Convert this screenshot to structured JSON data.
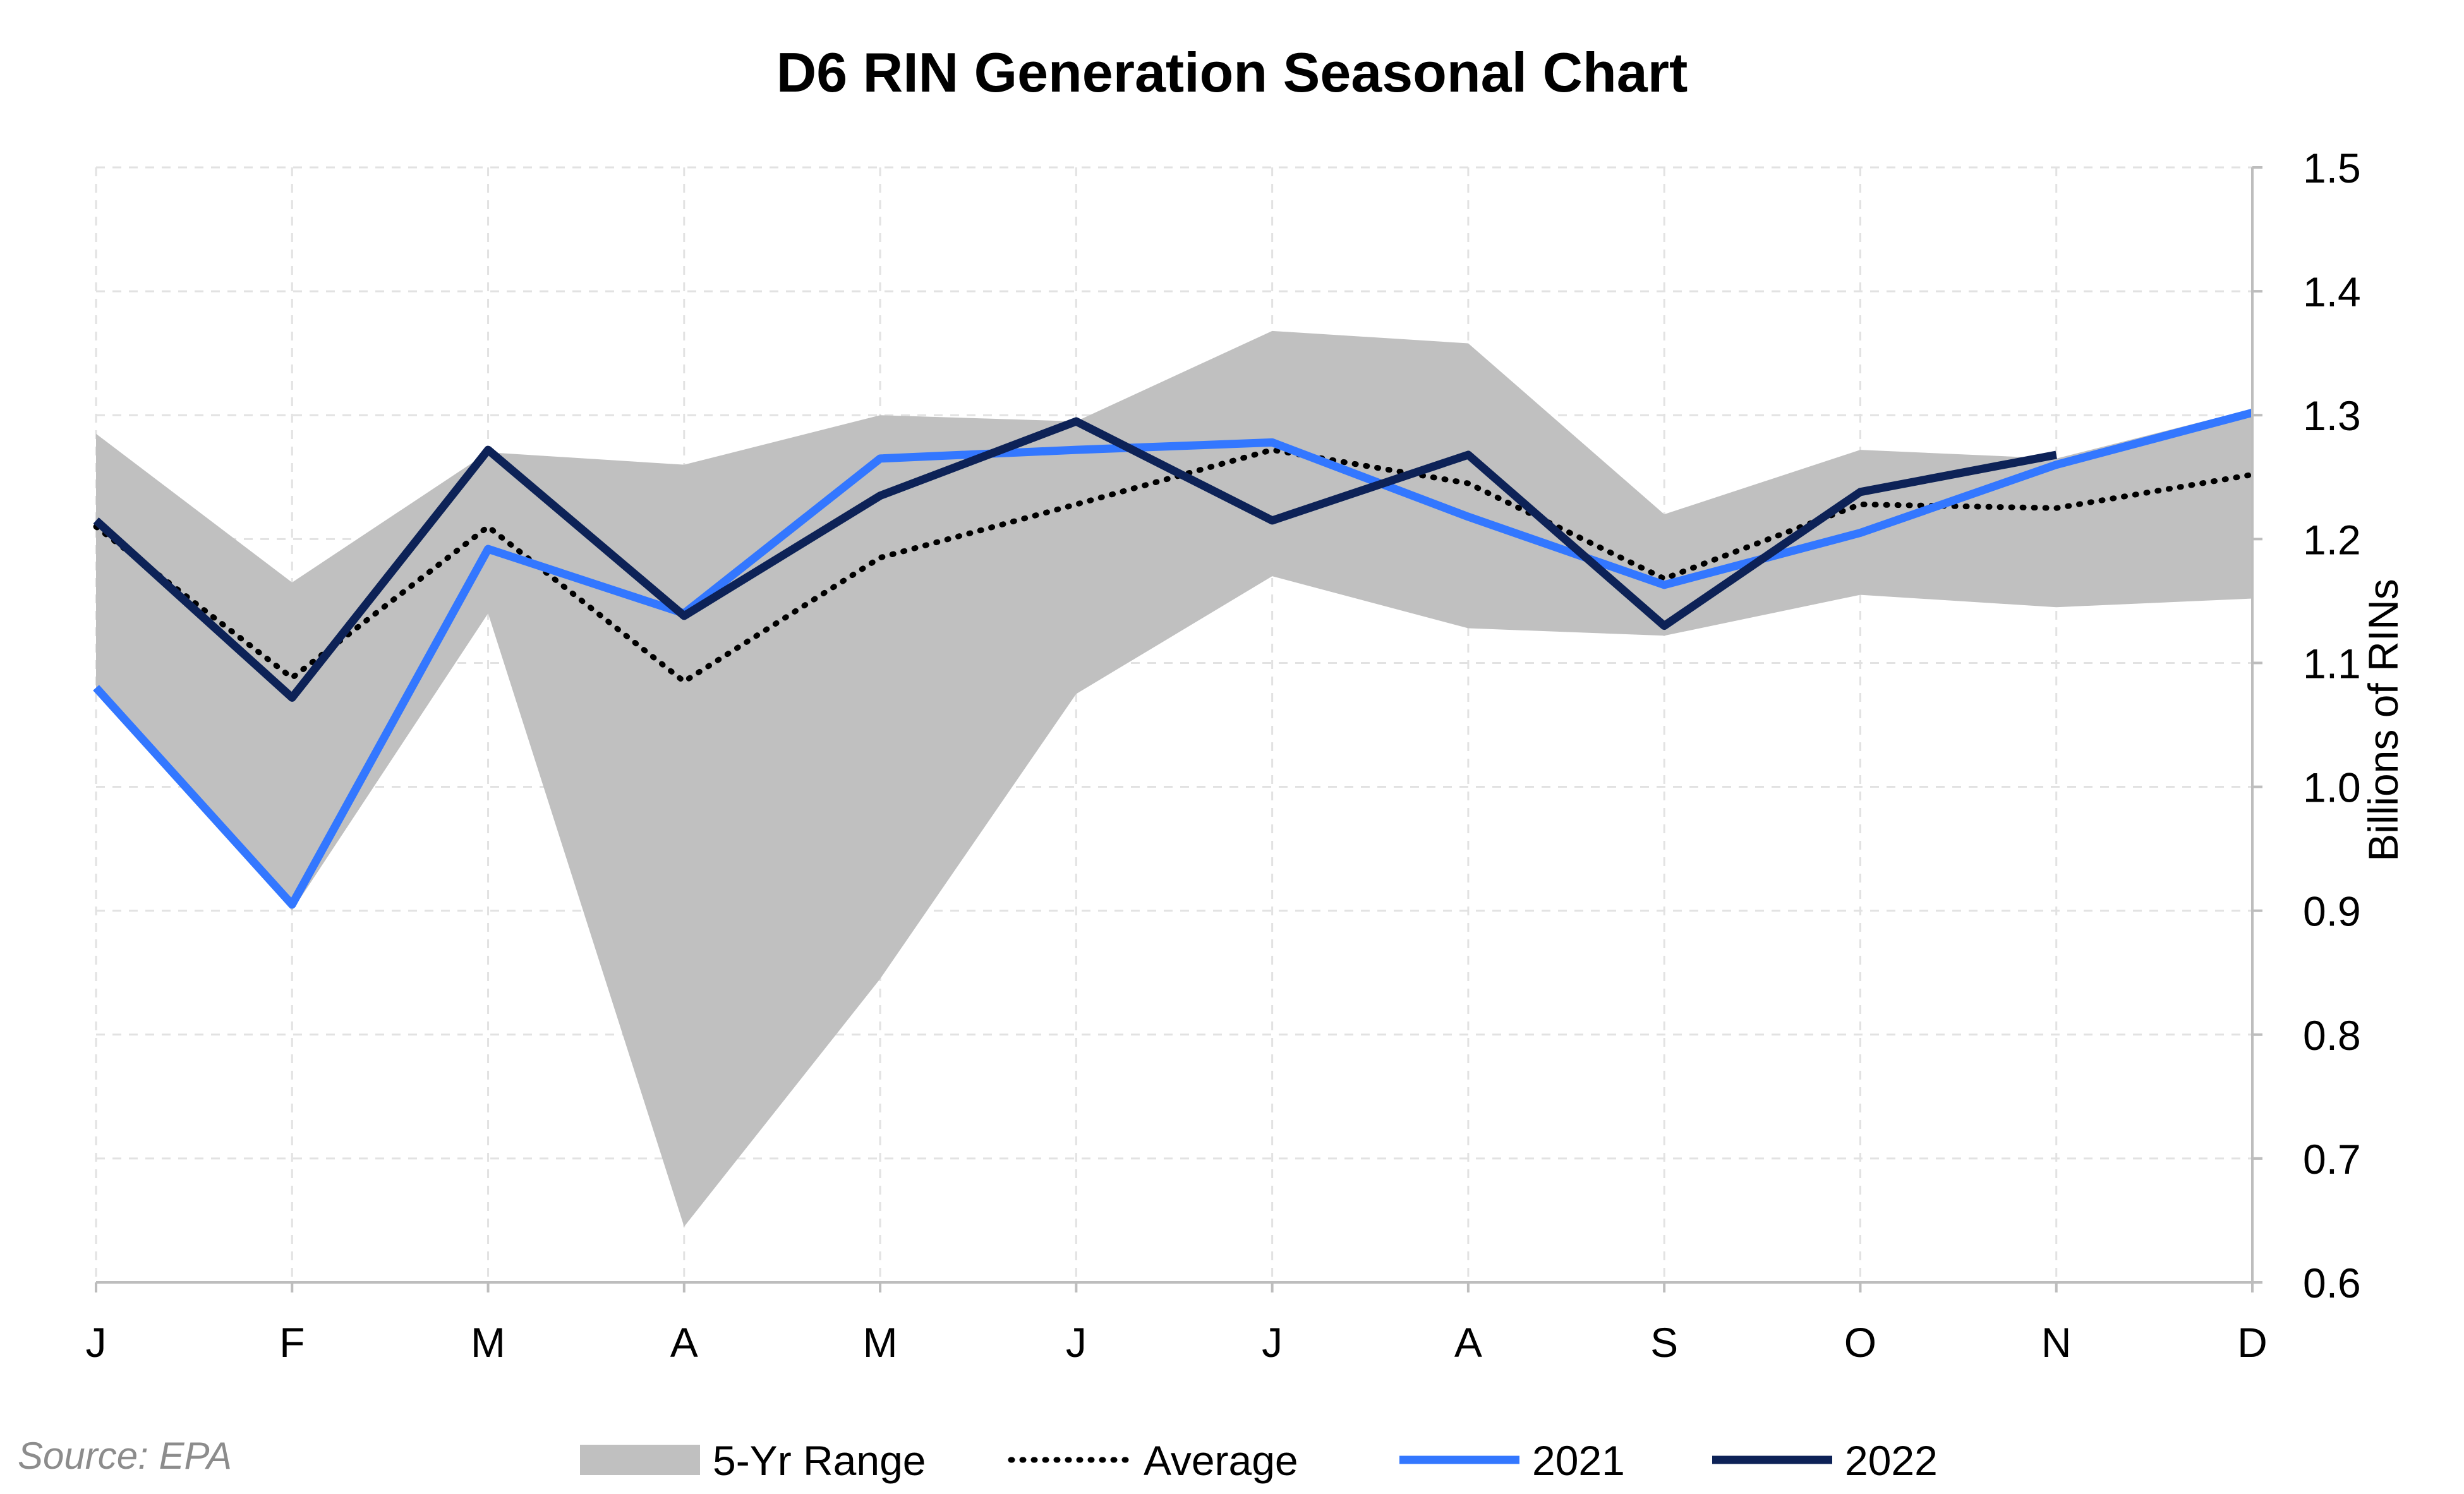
{
  "chart_data": {
    "type": "line",
    "title": "D6 RIN Generation Seasonal Chart",
    "xlabel": "",
    "ylabel": "Billions of RINs",
    "categories": [
      "J",
      "F",
      "M",
      "A",
      "M",
      "J",
      "J",
      "A",
      "S",
      "O",
      "N",
      "D"
    ],
    "ylim": [
      0.6,
      1.5
    ],
    "yticks": [
      "0.6",
      "0.7",
      "0.8",
      "0.9",
      "1.0",
      "1.1",
      "1.2",
      "1.3",
      "1.4",
      "1.5"
    ],
    "grid": true,
    "y_axis_side": "right",
    "legend_position": "bottom",
    "range_band": {
      "name": "5-Yr Range",
      "color": "#c0c0c0",
      "low": [
        1.08,
        0.9,
        1.14,
        0.645,
        0.845,
        1.075,
        1.17,
        1.128,
        1.122,
        1.155,
        1.145,
        1.152
      ],
      "high": [
        1.285,
        1.165,
        1.27,
        1.26,
        1.3,
        1.295,
        1.368,
        1.358,
        1.22,
        1.272,
        1.265,
        1.305
      ]
    },
    "series": [
      {
        "name": "Average",
        "color": "#000000",
        "style": "dotted",
        "values": [
          1.21,
          1.088,
          1.21,
          1.085,
          1.185,
          1.228,
          1.272,
          1.245,
          1.168,
          1.228,
          1.225,
          1.252
        ]
      },
      {
        "name": "2021",
        "color": "#3377ff",
        "style": "solid",
        "values": [
          1.08,
          0.905,
          1.192,
          1.14,
          1.265,
          1.272,
          1.278,
          1.218,
          1.163,
          1.205,
          1.26,
          1.302
        ]
      },
      {
        "name": "2022",
        "color": "#0d2257",
        "style": "solid",
        "values": [
          1.215,
          1.072,
          1.272,
          1.138,
          1.235,
          1.295,
          1.215,
          1.268,
          1.13,
          1.238,
          1.268,
          null
        ]
      }
    ],
    "source": "Source: EPA"
  }
}
